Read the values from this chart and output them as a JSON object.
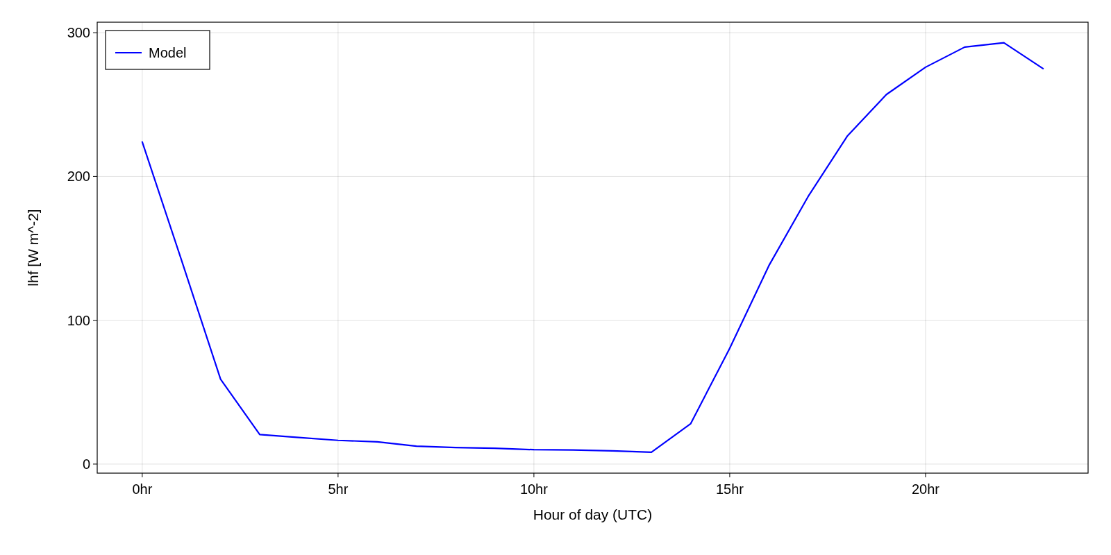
{
  "chart_data": {
    "type": "line",
    "xlabel": "Hour of day (UTC)",
    "ylabel": "lhf [W m^-2]",
    "x": [
      0,
      1,
      2,
      3,
      4,
      5,
      6,
      7,
      8,
      9,
      10,
      11,
      12,
      13,
      14,
      15,
      16,
      17,
      18,
      19,
      20,
      21,
      22,
      23
    ],
    "series": [
      {
        "name": "Model",
        "color": "#0000ff",
        "values": [
          224,
          142,
          59,
          20.5,
          18.5,
          16.5,
          15.5,
          12.5,
          11.5,
          11,
          10,
          9.8,
          9.2,
          8.2,
          28,
          80.5,
          138,
          186,
          228,
          257,
          276,
          290,
          293,
          275
        ]
      }
    ],
    "xlim": [
      -1.15,
      24.15
    ],
    "ylim": [
      -6.3,
      307.3
    ],
    "xticks": [
      {
        "value": 0,
        "label": "0hr"
      },
      {
        "value": 5,
        "label": "5hr"
      },
      {
        "value": 10,
        "label": "10hr"
      },
      {
        "value": 15,
        "label": "15hr"
      },
      {
        "value": 20,
        "label": "20hr"
      }
    ],
    "yticks": [
      0,
      100,
      200,
      300
    ],
    "grid": true,
    "legend": "top left",
    "line_style": "solid",
    "marker": "none"
  }
}
